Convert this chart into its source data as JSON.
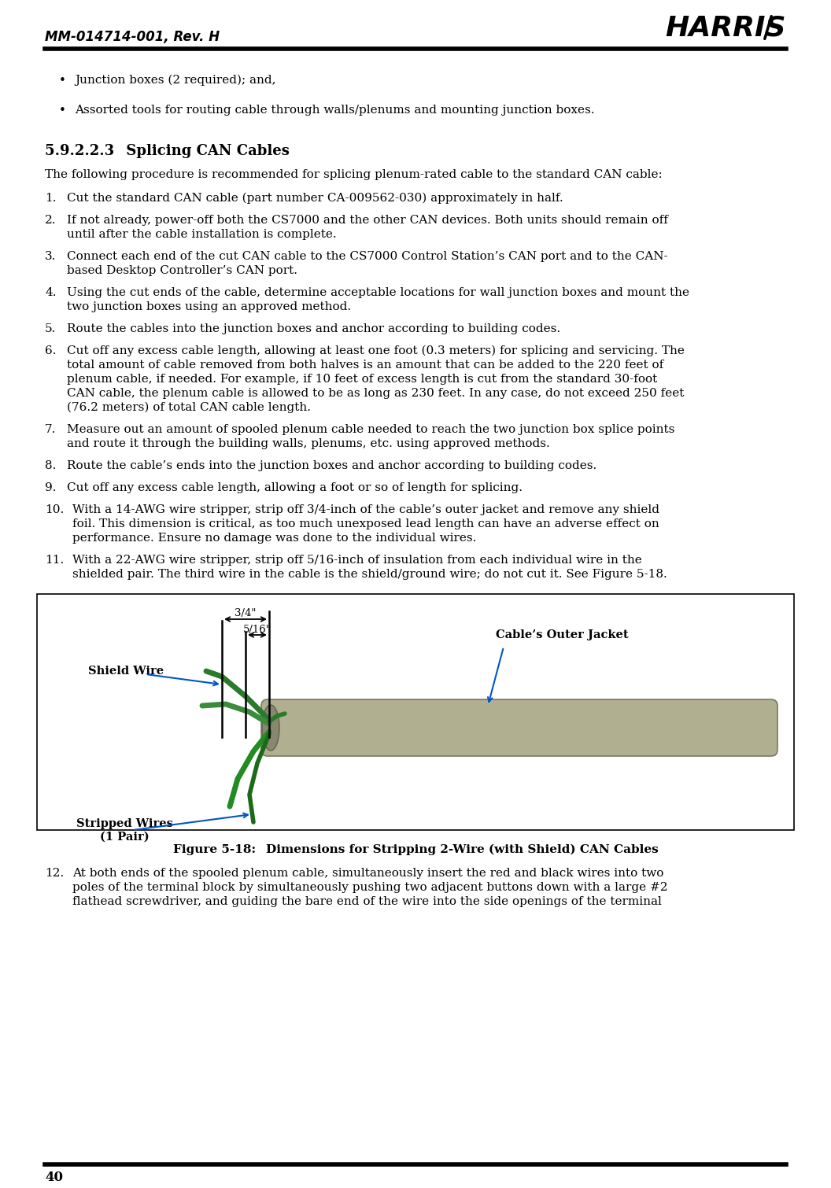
{
  "title_left": "MM-014714-001, Rev. H",
  "page_number": "40",
  "section_title": "5.9.2.2.3  Splicing CAN Cables",
  "bullets": [
    "Junction boxes (2 required); and,",
    "Assorted tools for routing cable through walls/plenums and mounting junction boxes."
  ],
  "intro_text": "The following procedure is recommended for splicing plenum-rated cable to the standard CAN cable:",
  "steps": [
    [
      "1.",
      "Cut the standard CAN cable (part number CA-009562-030) approximately in half."
    ],
    [
      "2.",
      "If not already, power-off both the CS7000 and the other CAN devices. Both units should remain off\nuntil after the cable installation is complete."
    ],
    [
      "3.",
      "Connect each end of the cut CAN cable to the CS7000 Control Station’s CAN port and to the CAN-\nbased Desktop Controller’s CAN port."
    ],
    [
      "4.",
      "Using the cut ends of the cable, determine acceptable locations for wall junction boxes and mount the\ntwo junction boxes using an approved method."
    ],
    [
      "5.",
      "Route the cables into the junction boxes and anchor according to building codes."
    ],
    [
      "6.",
      "Cut off any excess cable length, allowing at least one foot (0.3 meters) for splicing and servicing. The\ntotal amount of cable removed from both halves is an amount that can be added to the 220 feet of\nplenum cable, if needed. For example, if 10 feet of excess length is cut from the standard 30-foot\nCAN cable, the plenum cable is allowed to be as long as 230 feet. In any case, do not exceed 250 feet\n(76.2 meters) of total CAN cable length."
    ],
    [
      "7.",
      "Measure out an amount of spooled plenum cable needed to reach the two junction box splice points\nand route it through the building walls, plenums, etc. using approved methods."
    ],
    [
      "8.",
      "Route the cable’s ends into the junction boxes and anchor according to building codes."
    ],
    [
      "9.",
      "Cut off any excess cable length, allowing a foot or so of length for splicing."
    ],
    [
      "10.",
      "With a 14-AWG wire stripper, strip off 3/4-inch of the cable’s outer jacket and remove any shield\nfoil. This dimension is critical, as too much unexposed lead length can have an adverse effect on\nperformance. Ensure no damage was done to the individual wires."
    ],
    [
      "11.",
      "With a 22-AWG wire stripper, strip off 5/16-inch of insulation from each individual wire in the\nshielded pair. The third wire in the cable is the shield/ground wire; do not cut it. See Figure 5-18."
    ]
  ],
  "step12": [
    "12.",
    "At both ends of the spooled plenum cable, simultaneously insert the red and black wires into two\npoles of the terminal block by simultaneously pushing two adjacent buttons down with a large #2\nflathead screwdriver, and guiding the bare end of the wire into the side openings of the terminal"
  ],
  "figure_caption": "Figure 5-18:  Dimensions for Stripping 2-Wire (with Shield) CAN Cables",
  "figure_labels": {
    "shield_wire": "Shield Wire",
    "stripped_wires": "Stripped Wires\n(1 Pair)",
    "cable_outer_jacket": "Cable’s Outer Jacket",
    "dim_34": "3/4\"",
    "dim_516": "5/16\""
  },
  "bg_color": "#ffffff",
  "text_color": "#000000",
  "annotation_color": "#0055cc"
}
